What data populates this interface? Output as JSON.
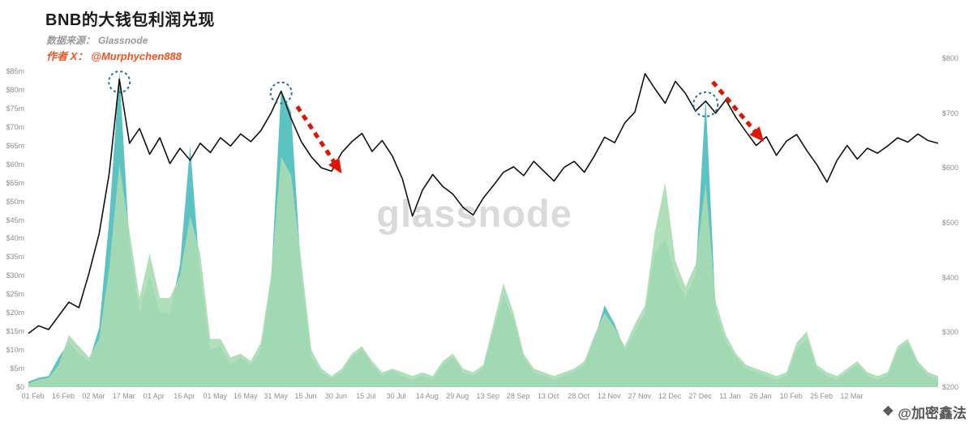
{
  "header": {
    "title": "BNB的大钱包利润兑现",
    "source_label": "数据来源：",
    "source_value": "Glassnode",
    "author_label": "作者 X：",
    "author_value": "@Murphychen888"
  },
  "watermark": {
    "center": "glassnode",
    "badge_icon": "❖",
    "badge_text": "@加密鑫法"
  },
  "chart_data": {
    "type": "area+line",
    "title": "BNB的大钱包利润兑现",
    "grid": "off",
    "legend": "none",
    "points_per_label": 3,
    "x_tick_labels": [
      "01 Feb",
      "16 Feb",
      "02 Mar",
      "17 Mar",
      "01 Apr",
      "16 Apr",
      "01 May",
      "16 May",
      "31 May",
      "15 Jun",
      "30 Jun",
      "15 Jul",
      "30 Jul",
      "14 Aug",
      "29 Aug",
      "13 Sep",
      "28 Sep",
      "13 Oct",
      "28 Oct",
      "12 Nov",
      "27 Nov",
      "12 Dec",
      "27 Dec",
      "11 Jan",
      "26 Jan",
      "10 Feb",
      "25 Feb",
      "12 Mar"
    ],
    "left_axis": {
      "unit": "$m",
      "min": 0,
      "max": 85,
      "tick_step": 5,
      "tick_labels": [
        "$0",
        "$5m",
        "$10m",
        "$15m",
        "$20m",
        "$25m",
        "$30m",
        "$35m",
        "$40m",
        "$45m",
        "$50m",
        "$55m",
        "$60m",
        "$65m",
        "$70m",
        "$75m",
        "$80m",
        "$85m"
      ]
    },
    "right_axis": {
      "unit": "$",
      "min": 200,
      "max": 800,
      "tick_step": 100,
      "tick_labels": [
        "$200",
        "$300",
        "$400",
        "$500",
        "$600",
        "$700",
        "$800"
      ]
    },
    "series": [
      {
        "name": "profit-taking-teal",
        "kind": "area",
        "axis": "left",
        "color": "#54bfbf",
        "opacity": 0.95,
        "values": [
          1.5,
          2.5,
          3,
          8,
          12,
          9,
          7,
          16,
          45,
          85,
          38,
          20,
          30,
          20,
          20,
          33,
          65,
          30,
          10,
          11,
          6,
          8,
          6,
          10,
          28,
          80,
          74,
          30,
          8,
          4,
          2.5,
          4,
          8,
          10,
          6,
          3,
          4.5,
          3,
          2,
          3,
          2,
          6,
          8,
          4,
          3,
          5,
          15,
          25,
          18,
          8,
          4,
          3,
          2,
          3,
          4,
          6,
          13,
          22,
          17,
          10,
          15,
          20,
          36,
          40,
          30,
          24,
          30,
          78,
          20,
          12,
          8,
          5,
          4,
          3,
          2,
          3,
          10,
          13,
          5,
          3,
          2,
          4,
          6,
          3,
          2,
          3,
          10,
          12,
          6,
          3,
          2
        ]
      },
      {
        "name": "profit-taking-green",
        "kind": "area",
        "axis": "left",
        "color": "#a8dcb2",
        "opacity": 0.9,
        "values": [
          1,
          2,
          2.5,
          6,
          14,
          11,
          8,
          13,
          32,
          60,
          42,
          24,
          36,
          24,
          24,
          30,
          46,
          36,
          13,
          13,
          8,
          9,
          7,
          12,
          30,
          62,
          57,
          34,
          10,
          5,
          3,
          5,
          9,
          11,
          7,
          4,
          5,
          4,
          3,
          4,
          3,
          7,
          9,
          5,
          4,
          6,
          17,
          28,
          20,
          9,
          5,
          4,
          3,
          4,
          5,
          7,
          14,
          20,
          16,
          11,
          17,
          22,
          42,
          55,
          34,
          27,
          33,
          55,
          23,
          14,
          9,
          6,
          5,
          4,
          3,
          4,
          12,
          15,
          6,
          4,
          3,
          5,
          7,
          4,
          3,
          4,
          11,
          13,
          7,
          4,
          3
        ]
      },
      {
        "name": "bnb-price",
        "kind": "line",
        "axis": "right",
        "color": "#111111",
        "width": 1.6,
        "values": [
          298,
          312,
          305,
          330,
          355,
          345,
          408,
          480,
          590,
          762,
          645,
          672,
          625,
          655,
          608,
          636,
          614,
          645,
          628,
          655,
          640,
          662,
          648,
          668,
          700,
          740,
          690,
          648,
          620,
          600,
          594,
          628,
          648,
          663,
          630,
          650,
          622,
          580,
          512,
          560,
          588,
          566,
          552,
          528,
          514,
          545,
          568,
          592,
          602,
          586,
          612,
          594,
          576,
          601,
          612,
          592,
          622,
          656,
          646,
          682,
          702,
          772,
          744,
          718,
          758,
          736,
          704,
          722,
          700,
          724,
          692,
          666,
          641,
          657,
          623,
          649,
          661,
          632,
          606,
          574,
          614,
          641,
          616,
          636,
          627,
          640,
          655,
          647,
          662,
          650,
          645
        ]
      }
    ],
    "annotations": {
      "circle_color": "#26708e",
      "arrow_color": "#e01400",
      "circles": [
        {
          "pt": 9,
          "price": 757,
          "r": 13
        },
        {
          "pt": 25,
          "price": 737,
          "r": 13
        },
        {
          "pt": 67,
          "price": 716,
          "r": 15
        }
      ],
      "arrows": [
        {
          "pt1": 26.6,
          "p1": 712,
          "pt2": 30.6,
          "p2": 601
        },
        {
          "pt1": 67.7,
          "p1": 757,
          "pt2": 72.3,
          "p2": 658
        }
      ]
    }
  }
}
